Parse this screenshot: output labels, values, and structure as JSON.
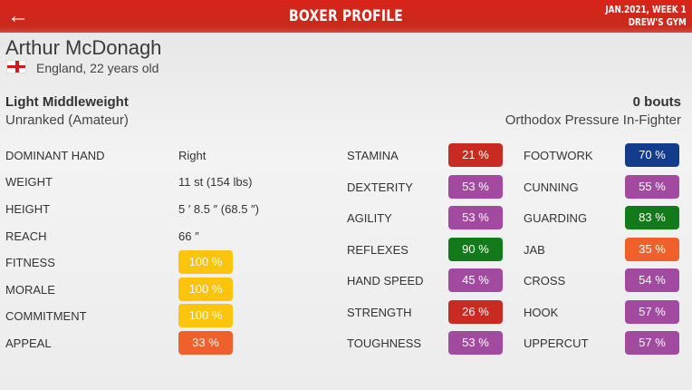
{
  "header": {
    "back_icon": "arrow-left-icon",
    "title": "BOXER PROFILE",
    "date": "JAN.2021, WEEK 1",
    "gym": "DREW'S GYM"
  },
  "profile": {
    "name": "Arthur McDonagh",
    "flag": "england-flag",
    "country_age": "England, 22 years old",
    "weight_class": "Light Middleweight",
    "ranking": "Unranked (Amateur)",
    "bouts": "0 bouts",
    "style": "Orthodox Pressure In-Fighter"
  },
  "info": [
    {
      "label": "DOMINANT HAND",
      "value": "Right"
    },
    {
      "label": "WEIGHT",
      "value": "11 st (154 lbs)"
    },
    {
      "label": "HEIGHT",
      "value": "5 ′ 8.5 ″ (68.5 ″)"
    },
    {
      "label": "REACH",
      "value": "66 ″"
    },
    {
      "label": "FITNESS",
      "value": "100 %",
      "color": "#fcc40a"
    },
    {
      "label": "MORALE",
      "value": "100 %",
      "color": "#fcc40a"
    },
    {
      "label": "COMMITMENT",
      "value": "100 %",
      "color": "#fcc40a"
    },
    {
      "label": "APPEAL",
      "value": "33 %",
      "color": "#f0602a"
    }
  ],
  "stats_a": [
    {
      "label": "STAMINA",
      "value": "21 %",
      "color": "#c92a22"
    },
    {
      "label": "DEXTERITY",
      "value": "53 %",
      "color": "#a24aa0"
    },
    {
      "label": "AGILITY",
      "value": "53 %",
      "color": "#a24aa0"
    },
    {
      "label": "REFLEXES",
      "value": "90 %",
      "color": "#137a1b"
    },
    {
      "label": "HAND SPEED",
      "value": "45 %",
      "color": "#a24aa0"
    },
    {
      "label": "STRENGTH",
      "value": "26 %",
      "color": "#c92a22"
    },
    {
      "label": "TOUGHNESS",
      "value": "53 %",
      "color": "#a24aa0"
    }
  ],
  "stats_b": [
    {
      "label": "FOOTWORK",
      "value": "70 %",
      "color": "#133c8c"
    },
    {
      "label": "CUNNING",
      "value": "55 %",
      "color": "#a24aa0"
    },
    {
      "label": "GUARDING",
      "value": "83 %",
      "color": "#137a1b"
    },
    {
      "label": "JAB",
      "value": "35 %",
      "color": "#f0602a"
    },
    {
      "label": "CROSS",
      "value": "54 %",
      "color": "#a24aa0"
    },
    {
      "label": "HOOK",
      "value": "57 %",
      "color": "#a24aa0"
    },
    {
      "label": "UPPERCUT",
      "value": "57 %",
      "color": "#a24aa0"
    }
  ]
}
